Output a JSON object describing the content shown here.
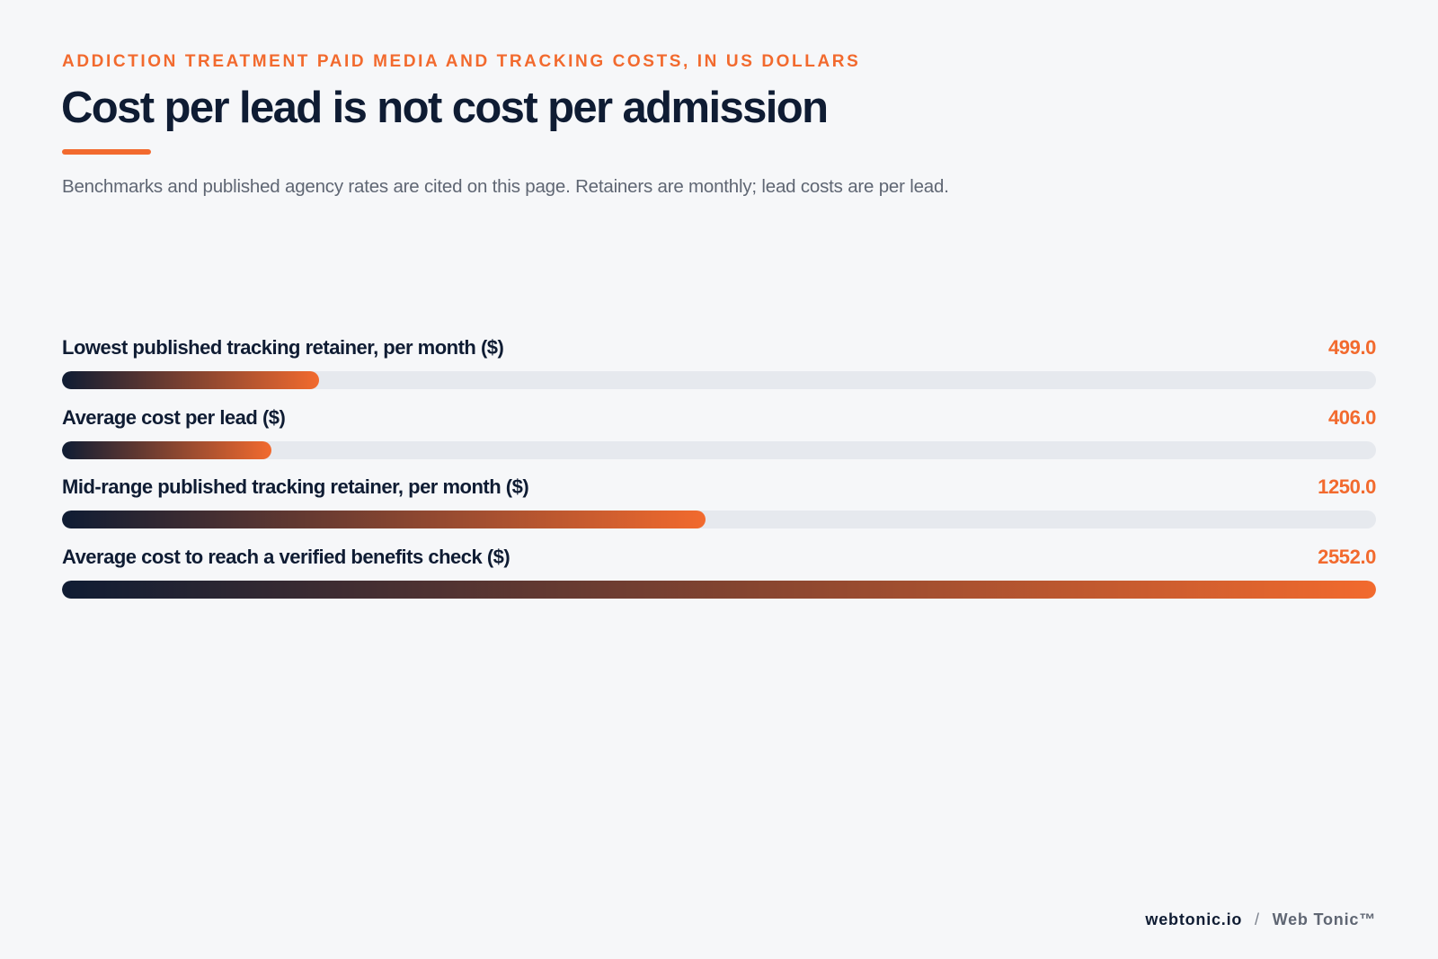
{
  "header": {
    "eyebrow": "ADDICTION TREATMENT PAID MEDIA AND TRACKING COSTS, IN US DOLLARS",
    "title": "Cost per lead is not cost per admission",
    "subtitle": "Benchmarks and published agency rates are cited on this page. Retainers are monthly; lead costs are per lead."
  },
  "chart_data": {
    "type": "bar",
    "orientation": "horizontal",
    "title": "Cost per lead is not cost per admission",
    "subtitle": "Benchmarks and published agency rates are cited on this page. Retainers are monthly; lead costs are per lead.",
    "categories": [
      "Lowest published tracking retainer, per month ($)",
      "Average cost per lead ($)",
      "Mid-range published tracking retainer, per month ($)",
      "Average cost to reach a verified benefits check ($)"
    ],
    "values": [
      499.0,
      406.0,
      1250.0,
      2552.0
    ],
    "value_labels": [
      "499.0",
      "406.0",
      "1250.0",
      "2552.0"
    ],
    "xlim": [
      0,
      2552.0
    ],
    "grid": false,
    "legend": "none",
    "colors": {
      "gradient_start": "#0f1c33",
      "gradient_end": "#f26a2e",
      "track": "#e6e9ee",
      "accent": "#f26a2e"
    }
  },
  "footer": {
    "site": "webtonic.io",
    "separator": "/",
    "brand": "Web Tonic™"
  }
}
